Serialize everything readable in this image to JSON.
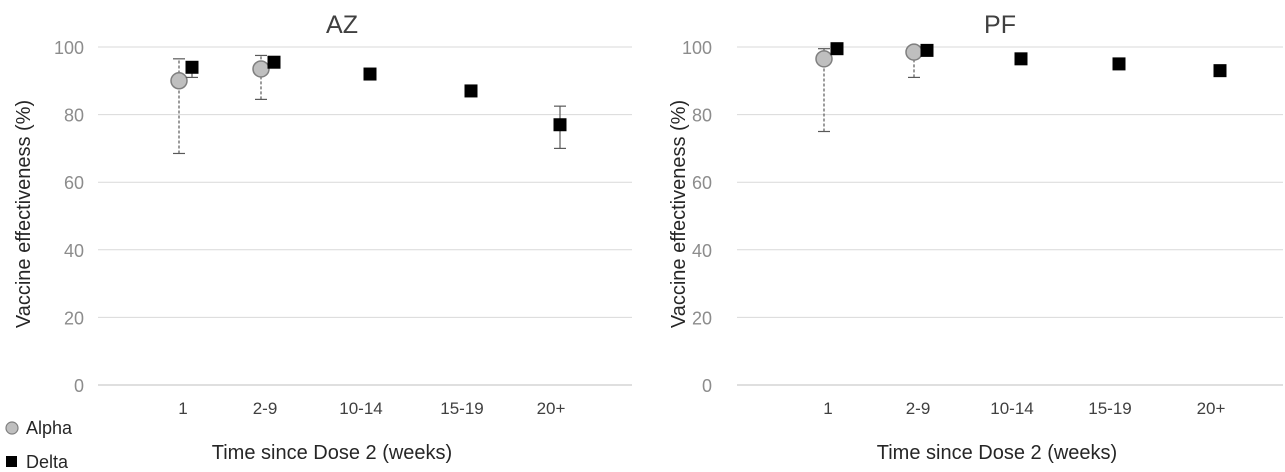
{
  "chart_data": [
    {
      "type": "scatter",
      "title": "AZ",
      "xlabel": "Time since Dose 2 (weeks)",
      "ylabel": "Vaccine effectiveness (%)",
      "categories": [
        "1",
        "2-9",
        "10-14",
        "15-19",
        "20+"
      ],
      "ylim": [
        0,
        100
      ],
      "yticks": [
        0,
        20,
        40,
        60,
        80,
        100
      ],
      "grid": true,
      "series": [
        {
          "name": "Alpha",
          "marker": "circle",
          "color": "#bfbfbf",
          "points": [
            {
              "x": "1",
              "y": 90,
              "lower": 68.5,
              "upper": 96.5
            },
            {
              "x": "2-9",
              "y": 93.5,
              "lower": 84.5,
              "upper": 97.5
            }
          ]
        },
        {
          "name": "Delta",
          "marker": "square",
          "color": "#000000",
          "points": [
            {
              "x": "1",
              "y": 94,
              "lower": 91,
              "upper": 95.5
            },
            {
              "x": "2-9",
              "y": 95.5,
              "lower": 94,
              "upper": 96.5
            },
            {
              "x": "10-14",
              "y": 92,
              "lower": 91,
              "upper": 93
            },
            {
              "x": "15-19",
              "y": 87,
              "lower": 86,
              "upper": 88
            },
            {
              "x": "20+",
              "y": 77,
              "lower": 70,
              "upper": 82.5
            }
          ]
        }
      ]
    },
    {
      "type": "scatter",
      "title": "PF",
      "xlabel": "Time since Dose 2 (weeks)",
      "ylabel": "Vaccine effectiveness (%)",
      "categories": [
        "1",
        "2-9",
        "10-14",
        "15-19",
        "20+"
      ],
      "ylim": [
        0,
        100
      ],
      "yticks": [
        0,
        20,
        40,
        60,
        80,
        100
      ],
      "grid": true,
      "series": [
        {
          "name": "Alpha",
          "marker": "circle",
          "color": "#bfbfbf",
          "points": [
            {
              "x": "1",
              "y": 96.5,
              "lower": 75,
              "upper": 99.5
            },
            {
              "x": "2-9",
              "y": 98.5,
              "lower": 91,
              "upper": 99.5
            }
          ]
        },
        {
          "name": "Delta",
          "marker": "square",
          "color": "#000000",
          "points": [
            {
              "x": "1",
              "y": 99.5,
              "lower": 99,
              "upper": 100
            },
            {
              "x": "2-9",
              "y": 99,
              "lower": 98.5,
              "upper": 99.5
            },
            {
              "x": "10-14",
              "y": 96.5,
              "lower": 96,
              "upper": 97
            },
            {
              "x": "15-19",
              "y": 95,
              "lower": 94.5,
              "upper": 95.5
            },
            {
              "x": "20+",
              "y": 93,
              "lower": 91.5,
              "upper": 94.5
            }
          ]
        }
      ]
    }
  ],
  "legend": {
    "position": "bottom-left",
    "items": [
      {
        "label": "Alpha",
        "marker": "circle",
        "color": "#bfbfbf"
      },
      {
        "label": "Delta",
        "marker": "square",
        "color": "#000000"
      }
    ]
  }
}
